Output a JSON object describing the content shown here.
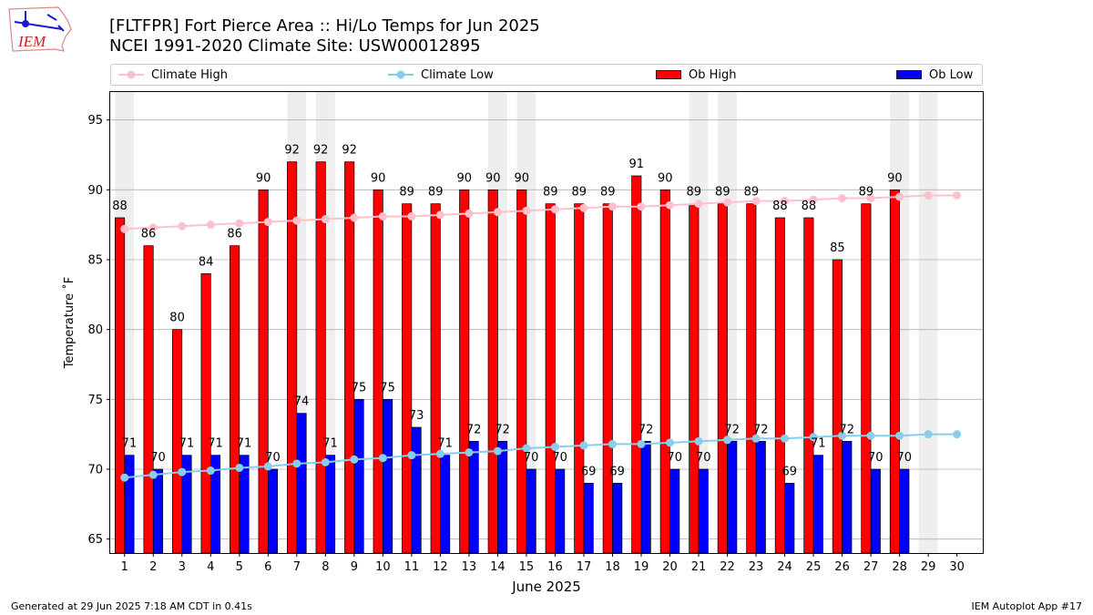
{
  "logo_text": "IEM",
  "title_line1": "[FLTFPR] Fort Pierce Area :: Hi/Lo Temps for Jun 2025",
  "title_line2": "NCEI 1991-2020 Climate Site: USW00012895",
  "footer_left": "Generated at 29 Jun 2025 7:18 AM CDT in 0.41s",
  "footer_right": "IEM Autoplot App #17",
  "legend": {
    "climate_high": "Climate High",
    "climate_low": "Climate Low",
    "ob_high": "Ob High",
    "ob_low": "Ob Low"
  },
  "colors": {
    "ob_high": "#ff0000",
    "ob_low": "#0000ff",
    "climate_high": "#ffc0cb",
    "climate_low": "#87ceeb",
    "weekend_shade": "#eeeeee",
    "grid": "#b0b0b0"
  },
  "chart_data": {
    "type": "bar",
    "xlabel": "June 2025",
    "ylabel": "Temperature ˚F",
    "ylim": [
      64,
      97
    ],
    "yticks": [
      65,
      70,
      75,
      80,
      85,
      90,
      95
    ],
    "grid": "horizontal",
    "legend_position": "top",
    "days": [
      1,
      2,
      3,
      4,
      5,
      6,
      7,
      8,
      9,
      10,
      11,
      12,
      13,
      14,
      15,
      16,
      17,
      18,
      19,
      20,
      21,
      22,
      23,
      24,
      25,
      26,
      27,
      28,
      29,
      30
    ],
    "shaded_weekend_days": [
      1,
      7,
      8,
      14,
      15,
      21,
      22,
      28,
      29
    ],
    "series": [
      {
        "name": "Ob High",
        "kind": "bar",
        "values": [
          88,
          86,
          80,
          84,
          86,
          90,
          92,
          92,
          92,
          90,
          89,
          89,
          90,
          90,
          90,
          89,
          89,
          89,
          91,
          90,
          89,
          89,
          89,
          88,
          88,
          85,
          89,
          90,
          null,
          null
        ]
      },
      {
        "name": "Ob Low",
        "kind": "bar",
        "values": [
          71,
          70,
          71,
          71,
          71,
          70,
          74,
          71,
          75,
          75,
          73,
          71,
          72,
          72,
          70,
          70,
          69,
          69,
          72,
          70,
          70,
          72,
          72,
          69,
          71,
          72,
          70,
          70,
          null,
          null
        ]
      },
      {
        "name": "Climate High",
        "kind": "line",
        "values": [
          87.2,
          87.3,
          87.4,
          87.5,
          87.6,
          87.7,
          87.8,
          87.9,
          88.0,
          88.1,
          88.1,
          88.2,
          88.3,
          88.4,
          88.5,
          88.6,
          88.7,
          88.8,
          88.8,
          88.9,
          89.0,
          89.1,
          89.2,
          89.2,
          89.3,
          89.4,
          89.4,
          89.5,
          89.6,
          89.6
        ]
      },
      {
        "name": "Climate Low",
        "kind": "line",
        "values": [
          69.4,
          69.6,
          69.8,
          69.9,
          70.1,
          70.2,
          70.4,
          70.5,
          70.7,
          70.8,
          71.0,
          71.1,
          71.2,
          71.3,
          71.5,
          71.6,
          71.7,
          71.8,
          71.8,
          71.9,
          72.0,
          72.1,
          72.2,
          72.2,
          72.3,
          72.4,
          72.4,
          72.4,
          72.5,
          72.5
        ]
      }
    ]
  }
}
